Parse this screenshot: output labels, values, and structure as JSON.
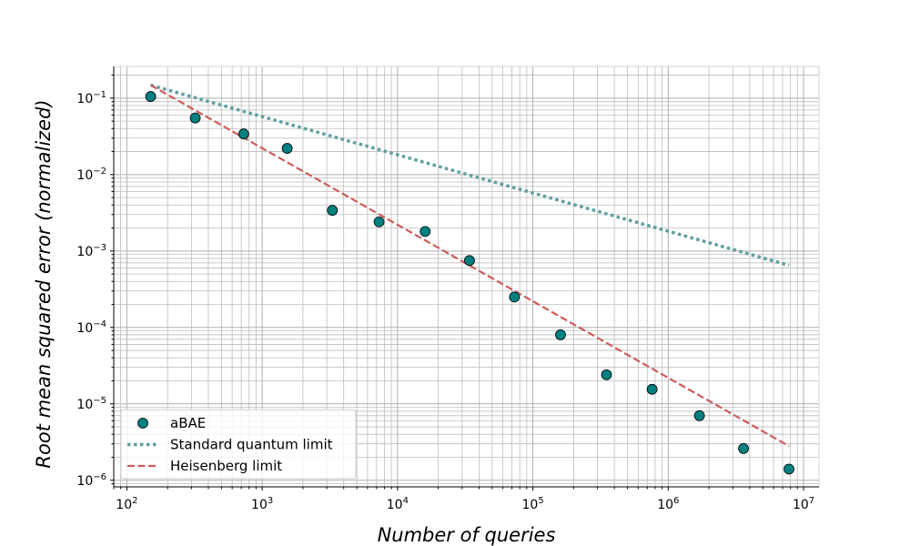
{
  "chart_data": {
    "type": "scatter",
    "scale": "log-log",
    "xlabel": "Number of queries",
    "ylabel": "Root mean squared error (normalized)",
    "xlim": [
      80,
      13000000
    ],
    "ylim": [
      8.2e-07,
      0.26
    ],
    "grid": true,
    "legend_placement": "bottom-left",
    "x_ticks": [
      {
        "value": 100,
        "base": "10",
        "exp": "2"
      },
      {
        "value": 1000,
        "base": "10",
        "exp": "3"
      },
      {
        "value": 10000,
        "base": "10",
        "exp": "4"
      },
      {
        "value": 100000,
        "base": "10",
        "exp": "5"
      },
      {
        "value": 1000000,
        "base": "10",
        "exp": "6"
      },
      {
        "value": 10000000,
        "base": "10",
        "exp": "7"
      }
    ],
    "y_ticks": [
      {
        "value": 0.1,
        "base": "10",
        "exp": "−1"
      },
      {
        "value": 0.01,
        "base": "10",
        "exp": "−2"
      },
      {
        "value": 0.001,
        "base": "10",
        "exp": "−3"
      },
      {
        "value": 0.0001,
        "base": "10",
        "exp": "−4"
      },
      {
        "value": 1e-05,
        "base": "10",
        "exp": "−5"
      },
      {
        "value": 1e-06,
        "base": "10",
        "exp": "−6"
      }
    ],
    "series": [
      {
        "name": "aBAE",
        "kind": "scatter",
        "color": "#008080",
        "edge_color": "#000000",
        "x": [
          150,
          320,
          730,
          1530,
          3300,
          7300,
          16000,
          34000,
          73000,
          160000,
          350000,
          760000,
          1700000,
          3600000,
          7800000
        ],
        "y": [
          0.105,
          0.055,
          0.034,
          0.022,
          0.0034,
          0.0024,
          0.0018,
          0.00075,
          0.00025,
          8e-05,
          2.4e-05,
          1.55e-05,
          7e-06,
          2.6e-06,
          1.4e-06
        ]
      },
      {
        "name": "Standard quantum limit",
        "kind": "line",
        "style": "dotted",
        "color": "#5F9EA0",
        "x": [
          150,
          7800000
        ],
        "y": [
          0.148,
          0.00065
        ]
      },
      {
        "name": "Heisenberg limit",
        "kind": "line",
        "style": "dashed",
        "color": "#CD5C5C",
        "x": [
          150,
          7800000
        ],
        "y": [
          0.148,
          2.8e-06
        ]
      }
    ]
  }
}
